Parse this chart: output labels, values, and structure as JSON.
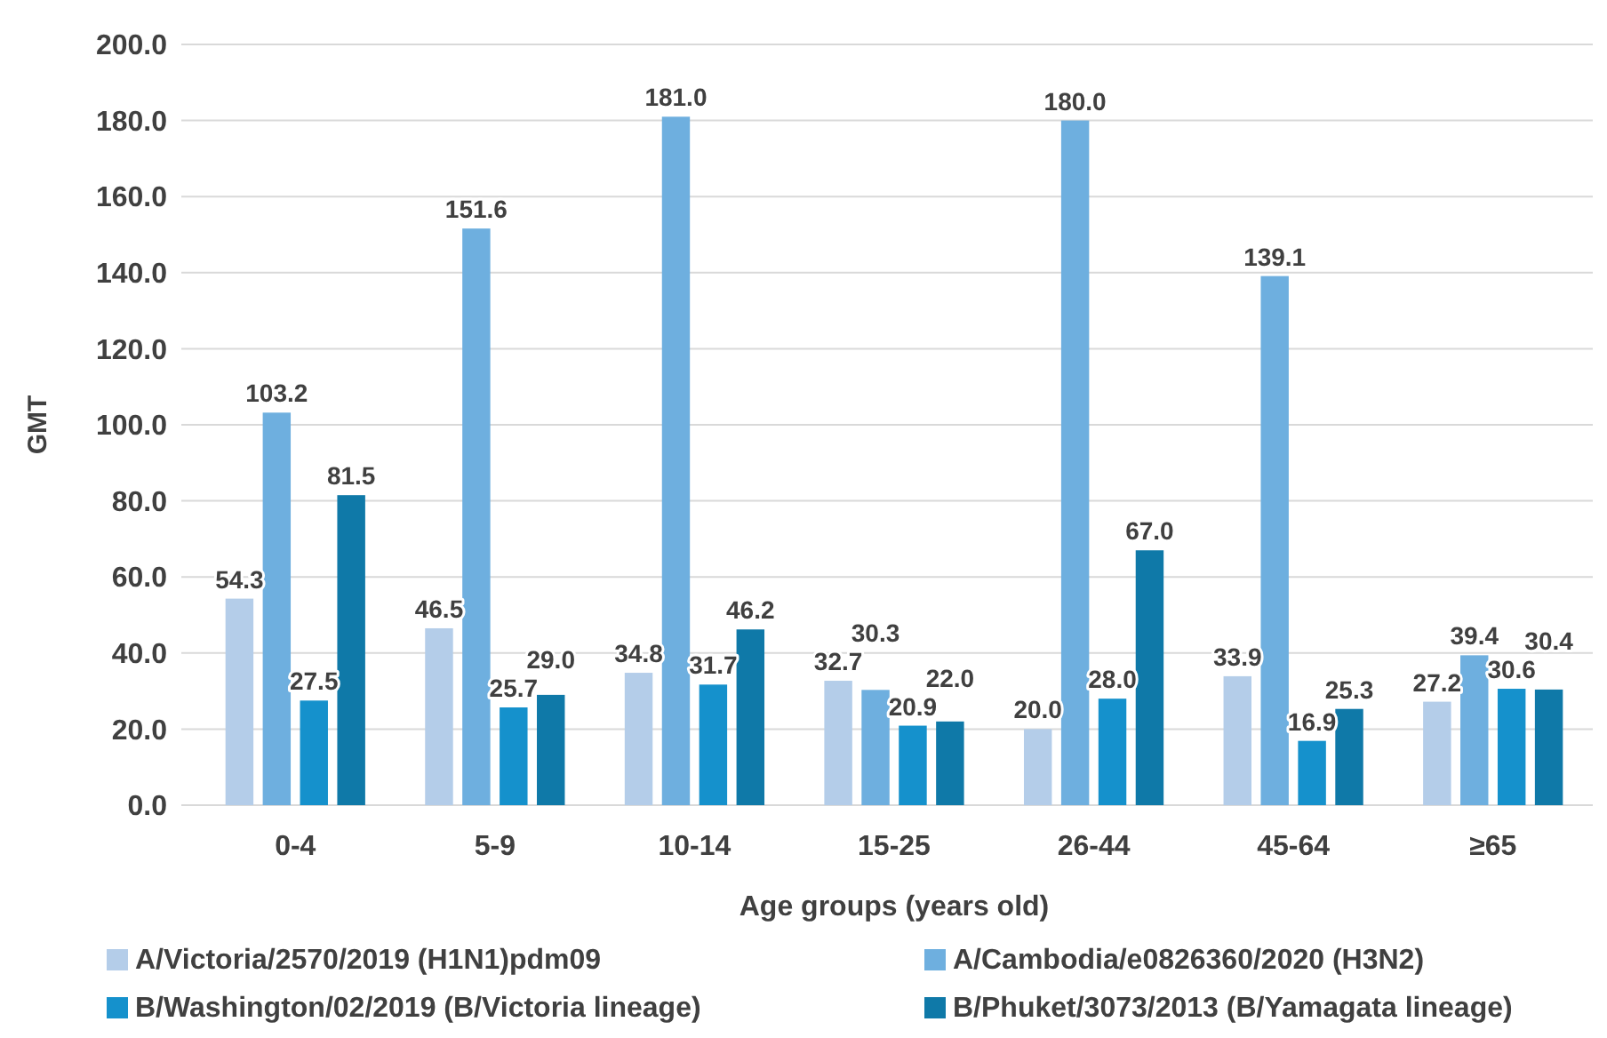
{
  "chart_data": {
    "type": "bar",
    "ylabel": "GMT",
    "xlabel": "Age groups (years old)",
    "categories": [
      "0-4",
      "5-9",
      "10-14",
      "15-25",
      "26-44",
      "45-64",
      "≥65"
    ],
    "series": [
      {
        "name": "A/Victoria/2570/2019 (H1N1)pdm09",
        "color": "#b4cde9",
        "values": [
          54.3,
          46.5,
          34.8,
          32.7,
          20.0,
          33.9,
          27.2
        ],
        "value_labels": [
          "54.3",
          "46.5",
          "34.8",
          "32.7",
          "20.0",
          "33.9",
          "27.2"
        ]
      },
      {
        "name": "A/Cambodia/e0826360/2020 (H3N2)",
        "color": "#6eafdf",
        "values": [
          103.2,
          151.6,
          181.0,
          30.3,
          180.0,
          139.1,
          39.4
        ],
        "value_labels": [
          "103.2",
          "151.6",
          "181.0",
          "30.3",
          "180.0",
          "139.1",
          "39.4"
        ]
      },
      {
        "name": "B/Washington/02/2019 (B/Victoria lineage)",
        "color": "#1591cc",
        "values": [
          27.5,
          25.7,
          31.7,
          20.9,
          28.0,
          16.9,
          30.6
        ],
        "value_labels": [
          "27.5",
          "25.7",
          "31.7",
          "20.9",
          "28.0",
          "16.9",
          "30.6"
        ]
      },
      {
        "name": "B/Phuket/3073/2013 (B/Yamagata lineage)",
        "color": "#0f79a8",
        "values": [
          81.5,
          29.0,
          46.2,
          22.0,
          67.0,
          25.3,
          30.4
        ],
        "value_labels": [
          "81.5",
          "29.0",
          "46.2",
          "22.0",
          "67.0",
          "25.3",
          "30.4"
        ]
      }
    ],
    "ylim": [
      0,
      200
    ],
    "yticks": [
      {
        "value": 0,
        "label": "0.0"
      },
      {
        "value": 20,
        "label": "20.0"
      },
      {
        "value": 40,
        "label": "40.0"
      },
      {
        "value": 60,
        "label": "60.0"
      },
      {
        "value": 80,
        "label": "80.0"
      },
      {
        "value": 100,
        "label": "100.0"
      },
      {
        "value": 120,
        "label": "120.0"
      },
      {
        "value": 140,
        "label": "140.0"
      },
      {
        "value": 160,
        "label": "160.0"
      },
      {
        "value": 180,
        "label": "180.0"
      },
      {
        "value": 200,
        "label": "200.0"
      }
    ],
    "grid": "y",
    "legend": "bottom"
  }
}
